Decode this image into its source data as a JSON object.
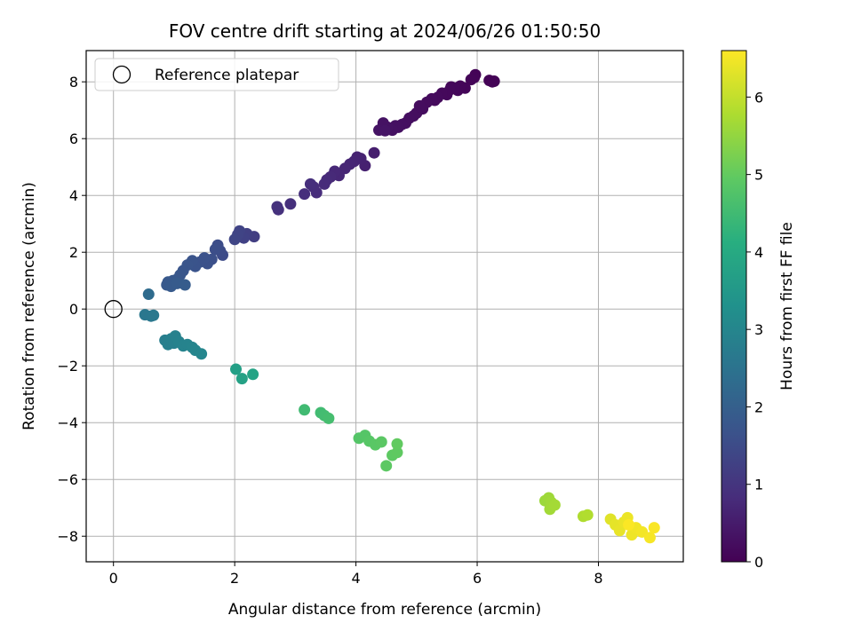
{
  "chart_data": {
    "type": "scatter",
    "title": "FOV centre drift starting at 2024/06/26 01:50:50",
    "xlabel": "Angular distance from reference (arcmin)",
    "ylabel": "Rotation from reference (arcmin)",
    "xlim": [
      -0.45,
      9.4
    ],
    "ylim": [
      -8.9,
      9.1
    ],
    "xticks": [
      0,
      2,
      4,
      6,
      8
    ],
    "yticks": [
      -8,
      -6,
      -4,
      -2,
      0,
      2,
      4,
      6,
      8
    ],
    "grid": true,
    "colormap": "viridis",
    "colorbar": {
      "label": "Hours from first FF file",
      "range": [
        0,
        6.6
      ],
      "ticks": [
        0,
        1,
        2,
        3,
        4,
        5,
        6
      ]
    },
    "legend": {
      "placement": "top-left",
      "entries": [
        {
          "label": "Reference platepar",
          "marker": "open-circle"
        }
      ]
    },
    "reference_point": {
      "x": 0,
      "y": 0
    },
    "series": [
      {
        "points": [
          [
            6.28,
            8.02,
            0.02
          ],
          [
            6.2,
            8.05,
            0.03
          ],
          [
            6.25,
            8.0,
            0.04
          ],
          [
            5.97,
            8.25,
            0.05
          ],
          [
            5.95,
            8.15,
            0.06
          ],
          [
            5.9,
            8.08,
            0.07
          ],
          [
            5.8,
            7.78,
            0.08
          ],
          [
            5.72,
            7.85,
            0.09
          ],
          [
            5.68,
            7.7,
            0.1
          ],
          [
            5.57,
            7.82,
            0.11
          ],
          [
            5.62,
            7.78,
            0.12
          ],
          [
            5.55,
            7.72,
            0.13
          ],
          [
            5.5,
            7.55,
            0.14
          ],
          [
            5.42,
            7.6,
            0.15
          ],
          [
            5.35,
            7.45,
            0.16
          ],
          [
            5.3,
            7.35,
            0.17
          ],
          [
            5.25,
            7.4,
            0.18
          ],
          [
            5.17,
            7.28,
            0.2
          ],
          [
            5.1,
            7.05,
            0.21
          ],
          [
            5.05,
            7.15,
            0.22
          ],
          [
            5.0,
            6.9,
            0.23
          ],
          [
            4.95,
            6.8,
            0.24
          ],
          [
            4.88,
            6.72,
            0.25
          ],
          [
            4.82,
            6.55,
            0.26
          ],
          [
            4.76,
            6.5,
            0.27
          ],
          [
            4.7,
            6.4,
            0.28
          ],
          [
            4.65,
            6.45,
            0.29
          ],
          [
            4.6,
            6.3,
            0.3
          ],
          [
            4.52,
            6.4,
            0.31
          ],
          [
            4.45,
            6.55,
            0.32
          ],
          [
            4.38,
            6.3,
            0.34
          ],
          [
            4.48,
            6.28,
            0.35
          ],
          [
            4.3,
            5.5,
            0.55
          ],
          [
            4.15,
            5.05,
            0.6
          ],
          [
            4.08,
            5.3,
            0.62
          ],
          [
            4.02,
            5.35,
            0.64
          ],
          [
            3.97,
            5.2,
            0.66
          ],
          [
            3.9,
            5.1,
            0.68
          ],
          [
            3.82,
            4.95,
            0.7
          ],
          [
            3.72,
            4.7,
            0.72
          ],
          [
            3.65,
            4.85,
            0.74
          ],
          [
            3.58,
            4.65,
            0.76
          ],
          [
            3.52,
            4.55,
            0.78
          ],
          [
            3.48,
            4.4,
            0.8
          ],
          [
            3.35,
            4.1,
            0.82
          ],
          [
            3.3,
            4.3,
            0.84
          ],
          [
            3.25,
            4.4,
            0.86
          ],
          [
            3.15,
            4.05,
            0.88
          ],
          [
            2.92,
            3.7,
            0.9
          ],
          [
            2.72,
            3.5,
            0.92
          ],
          [
            2.7,
            3.6,
            0.94
          ],
          [
            2.32,
            2.55,
            1.2
          ],
          [
            2.2,
            2.65,
            1.25
          ],
          [
            2.15,
            2.5,
            1.28
          ],
          [
            2.08,
            2.75,
            1.32
          ],
          [
            2.05,
            2.62,
            1.34
          ],
          [
            2.0,
            2.45,
            1.36
          ],
          [
            1.8,
            1.9,
            1.5
          ],
          [
            1.76,
            2.05,
            1.52
          ],
          [
            1.72,
            2.25,
            1.54
          ],
          [
            1.68,
            2.1,
            1.56
          ],
          [
            1.62,
            1.75,
            1.6
          ],
          [
            1.55,
            1.6,
            1.62
          ],
          [
            1.5,
            1.8,
            1.64
          ],
          [
            1.42,
            1.65,
            1.66
          ],
          [
            1.35,
            1.5,
            1.68
          ],
          [
            1.3,
            1.7,
            1.7
          ],
          [
            1.22,
            1.55,
            1.72
          ],
          [
            1.15,
            1.35,
            1.74
          ],
          [
            1.1,
            1.2,
            1.76
          ],
          [
            1.05,
            1.05,
            1.78
          ],
          [
            0.98,
            1.0,
            1.8
          ],
          [
            0.9,
            0.95,
            1.82
          ],
          [
            0.88,
            0.85,
            1.84
          ],
          [
            0.95,
            0.8,
            1.86
          ],
          [
            1.05,
            0.9,
            1.88
          ],
          [
            1.18,
            0.85,
            1.9
          ],
          [
            0.58,
            0.52,
            2.3
          ],
          [
            0.52,
            -0.2,
            2.6
          ],
          [
            0.62,
            -0.25,
            2.62
          ],
          [
            0.66,
            -0.22,
            2.64
          ],
          [
            0.85,
            -1.1,
            2.8
          ],
          [
            0.9,
            -1.25,
            2.82
          ],
          [
            0.95,
            -1.05,
            2.84
          ],
          [
            1.0,
            -1.2,
            2.86
          ],
          [
            1.02,
            -0.95,
            2.88
          ],
          [
            1.08,
            -1.15,
            2.9
          ],
          [
            1.15,
            -1.3,
            2.92
          ],
          [
            1.22,
            -1.25,
            2.94
          ],
          [
            1.3,
            -1.35,
            2.96
          ],
          [
            1.35,
            -1.45,
            2.98
          ],
          [
            1.45,
            -1.58,
            3.0
          ],
          [
            2.02,
            -2.12,
            3.7
          ],
          [
            2.12,
            -2.45,
            3.75
          ],
          [
            2.3,
            -2.3,
            3.8
          ],
          [
            3.15,
            -3.55,
            4.5
          ],
          [
            3.42,
            -3.65,
            4.52
          ],
          [
            3.48,
            -3.75,
            4.55
          ],
          [
            3.55,
            -3.85,
            4.58
          ],
          [
            4.05,
            -4.55,
            4.8
          ],
          [
            4.15,
            -4.45,
            4.82
          ],
          [
            4.22,
            -4.65,
            4.85
          ],
          [
            4.32,
            -4.78,
            4.88
          ],
          [
            4.42,
            -4.68,
            4.9
          ],
          [
            4.5,
            -5.52,
            4.92
          ],
          [
            4.6,
            -5.15,
            4.94
          ],
          [
            4.68,
            -5.05,
            4.96
          ],
          [
            4.68,
            -4.75,
            4.98
          ],
          [
            7.12,
            -6.75,
            5.6
          ],
          [
            7.18,
            -6.65,
            5.62
          ],
          [
            7.22,
            -6.8,
            5.64
          ],
          [
            7.2,
            -7.05,
            5.66
          ],
          [
            7.28,
            -6.9,
            5.68
          ],
          [
            7.75,
            -7.3,
            5.8
          ],
          [
            7.82,
            -7.25,
            5.82
          ],
          [
            8.2,
            -7.4,
            6.3
          ],
          [
            8.28,
            -7.6,
            6.35
          ],
          [
            8.35,
            -7.8,
            6.38
          ],
          [
            8.42,
            -7.5,
            6.4
          ],
          [
            8.48,
            -7.35,
            6.42
          ],
          [
            8.55,
            -7.95,
            6.45
          ],
          [
            8.62,
            -7.7,
            6.48
          ],
          [
            8.72,
            -7.85,
            6.5
          ],
          [
            8.85,
            -8.05,
            6.53
          ],
          [
            8.92,
            -7.7,
            6.56
          ],
          [
            8.5,
            -7.6,
            6.58
          ]
        ]
      }
    ]
  }
}
